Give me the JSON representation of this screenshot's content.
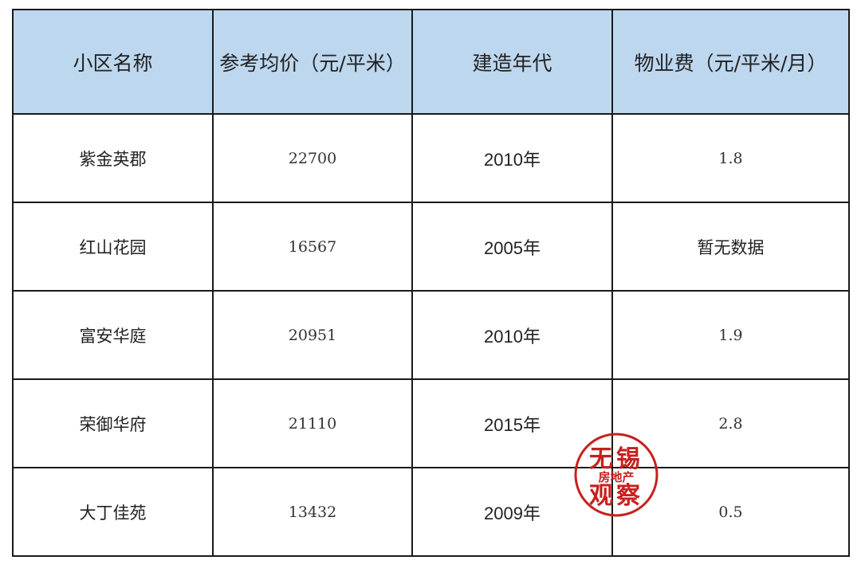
{
  "table": {
    "headers": [
      "小区名称",
      "参考均价（元/平米）",
      "建造年代",
      "物业费（元/平米/月）"
    ],
    "rows": [
      [
        "紫金英郡",
        "22700",
        "2010年",
        "1.8"
      ],
      [
        "红山花园",
        "16567",
        "2005年",
        "暂无数据"
      ],
      [
        "富安华庭",
        "20951",
        "2010年",
        "1.9"
      ],
      [
        "荣御华府",
        "21110",
        "2015年",
        "2.8"
      ],
      [
        "大丁佳苑",
        "13432",
        "2009年",
        "0.5"
      ]
    ]
  },
  "stamp": {
    "top": "无锡",
    "middle": "房地产",
    "bottom": "观察",
    "color": "#c8201e"
  },
  "colors": {
    "header_bg": "#bdd7ee",
    "border": "#1a1a1a"
  }
}
